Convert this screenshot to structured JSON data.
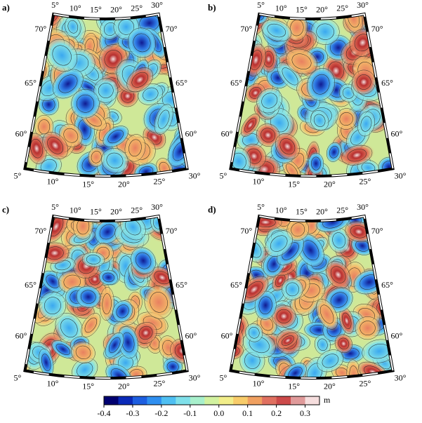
{
  "panels": [
    {
      "label": "a)",
      "lon_labels_top": [
        "5°",
        "10°",
        "15°",
        "20°",
        "25°",
        "30°"
      ],
      "lon_labels_bottom": [
        "5°",
        "10°",
        "15°",
        "20°",
        "25°",
        "30°"
      ],
      "lat_labels_left": [
        "70°",
        "65°",
        "60°"
      ],
      "lat_labels_right": [
        "70°",
        "65°",
        "60°"
      ]
    },
    {
      "label": "b)",
      "lon_labels_top": [
        "5°",
        "10°",
        "15°",
        "20°",
        "25°",
        "30°"
      ],
      "lon_labels_bottom": [
        "5°",
        "10°",
        "15°",
        "20°",
        "25°",
        "30°"
      ],
      "lat_labels_left": [
        "70°",
        "65°",
        "60°"
      ],
      "lat_labels_right": [
        "70°",
        "65°",
        "60°"
      ]
    },
    {
      "label": "c)",
      "lon_labels_top": [
        "5°",
        "10°",
        "15°",
        "20°",
        "25°",
        "30°"
      ],
      "lon_labels_bottom": [
        "5°",
        "10°",
        "15°",
        "20°",
        "25°",
        "30°"
      ],
      "lat_labels_left": [
        "70°",
        "65°",
        "60°"
      ],
      "lat_labels_right": [
        "70°",
        "65°",
        "60°"
      ]
    },
    {
      "label": "d)",
      "lon_labels_top": [
        "5°",
        "10°",
        "15°",
        "20°",
        "25°",
        "30°"
      ],
      "lon_labels_bottom": [
        "5°",
        "10°",
        "15°",
        "20°",
        "25°",
        "30°"
      ],
      "lat_labels_left": [
        "70°",
        "65°",
        "60°"
      ],
      "lat_labels_right": [
        "70°",
        "65°",
        "60°"
      ]
    }
  ],
  "colorbar": {
    "unit": "m",
    "lim": [
      -0.4,
      0.35
    ],
    "ticks": [
      -0.4,
      -0.3,
      -0.2,
      -0.1,
      {
        "value": 0,
        "label": "0.0"
      },
      0.1,
      0.2,
      0.3
    ],
    "colors": [
      "#000070",
      "#0a2ab8",
      "#1d5ee0",
      "#2f8ff0",
      "#4fbff2",
      "#7fe0ea",
      "#a8f0cc",
      "#d2f2a0",
      "#f2ee8a",
      "#f8cc6a",
      "#f0a060",
      "#e07060",
      "#cc4a4a",
      "#e09a9a",
      "#f6dede"
    ]
  }
}
